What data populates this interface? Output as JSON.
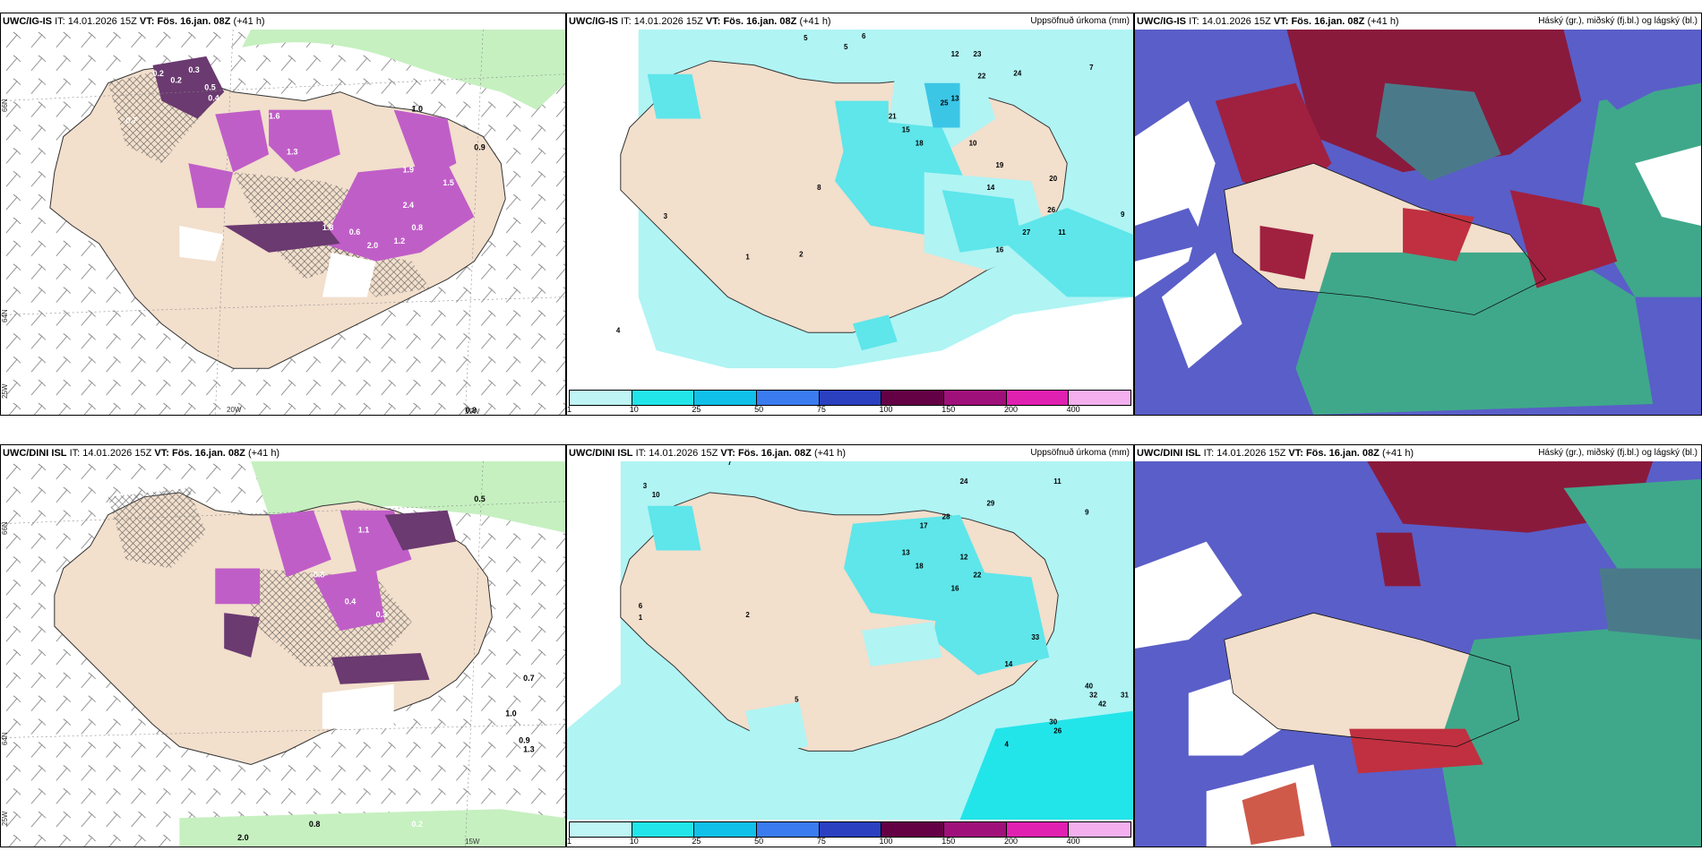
{
  "rows": [
    {
      "model": "UWC/IG-IS",
      "left": {
        "model": "UWC/IG-IS",
        "it_label": "IT:",
        "it_value": "14.01.2026 15Z",
        "vt_label": "VT:",
        "vt_value": "Fös. 16.jan. 08Z",
        "lead": "(+41 h)"
      },
      "mid": {
        "model": "UWC/IG-IS",
        "it_label": "IT:",
        "it_value": "14.01.2026 15Z",
        "vt_label": "VT:",
        "vt_value": "Fös. 16.jan. 08Z",
        "lead": "(+41 h)",
        "right_title": "Uppsöfnuð úrkoma (mm)"
      },
      "right": {
        "model": "UWC/IG-IS",
        "it_label": "IT:",
        "it_value": "14.01.2026 15Z",
        "vt_label": "VT:",
        "vt_value": "Fös. 16.jan. 08Z",
        "lead": "(+41 h)",
        "right_title": "Háský (gr.), miðský (fj.bl.) og lágský (bl.)"
      },
      "axis": {
        "lat_66": "66N",
        "lat_64": "64N",
        "lon_25": "25W",
        "lon_20": "20W",
        "lon_15": "15W"
      },
      "left_values": [
        "0.2",
        "0.2",
        "0.3",
        "0.5",
        "0.4",
        "0.7",
        "1.6",
        "1.0",
        "1.9",
        "1.3",
        "0.6",
        "1.2",
        "0.8",
        "2.4",
        "1.5",
        "0.9",
        "2.0",
        "1.8"
      ],
      "mid_values": [
        "5",
        "5",
        "6",
        "12",
        "23",
        "7",
        "22",
        "13",
        "24",
        "21",
        "18",
        "8",
        "15",
        "25",
        "10",
        "14",
        "19",
        "20",
        "9",
        "16",
        "11",
        "27",
        "4",
        "3",
        "2",
        "1",
        "26"
      ]
    },
    {
      "model": "UWC/DINI ISL",
      "left": {
        "model": "UWC/DINI ISL",
        "it_label": "IT:",
        "it_value": "14.01.2026 15Z",
        "vt_label": "VT:",
        "vt_value": "Fös. 16.jan. 08Z",
        "lead": "(+41 h)"
      },
      "mid": {
        "model": "UWC/DINI ISL",
        "it_label": "IT:",
        "it_value": "14.01.2026 15Z",
        "vt_label": "VT:",
        "vt_value": "Fös. 16.jan. 08Z",
        "lead": "(+41 h)",
        "right_title": "Uppsöfnuð úrkoma (mm)"
      },
      "right": {
        "model": "UWC/DINI ISL",
        "it_label": "IT:",
        "it_value": "14.01.2026 15Z",
        "vt_label": "VT:",
        "vt_value": "Fös. 16.jan. 08Z",
        "lead": "(+41 h)",
        "right_title": "Háský (gr.), miðský (fj.bl.) og lágský (bl.)"
      },
      "axis": {
        "lat_66": "66N",
        "lat_64": "64N",
        "lon_25": "25W",
        "lon_15": "15W"
      },
      "left_values": [
        "0.5",
        "0.6",
        "0.8",
        "1.1",
        "0.4",
        "0.3",
        "0.7",
        "1.0",
        "0.9",
        "2.0",
        "0.2",
        "1.3"
      ],
      "mid_values": [
        "7",
        "3",
        "10",
        "24",
        "11",
        "29",
        "32",
        "14",
        "17",
        "12",
        "18",
        "28",
        "22",
        "9",
        "16",
        "13",
        "33",
        "31",
        "42",
        "40",
        "30",
        "26",
        "4",
        "6",
        "5",
        "1",
        "2"
      ]
    }
  ],
  "colorbar": {
    "labels": [
      "1",
      "10",
      "25",
      "50",
      "75",
      "100",
      "150",
      "200",
      "400"
    ],
    "colors": [
      "#bff5f5",
      "#22e5ea",
      "#10c0e8",
      "#3a7bf0",
      "#2a40c0",
      "#640044",
      "#a0107a",
      "#e020b0",
      "#f4b0ee"
    ]
  },
  "colors": {
    "land": "#f2dfcc",
    "sea_green": "#c6f0c0",
    "precip_cyan": "#b0f4f4",
    "snow_purple": "#c05ec8",
    "cloud_blue": "#5a5ec8",
    "cloud_red": "#8a1a3c",
    "cloud_green": "#3fa88a"
  }
}
